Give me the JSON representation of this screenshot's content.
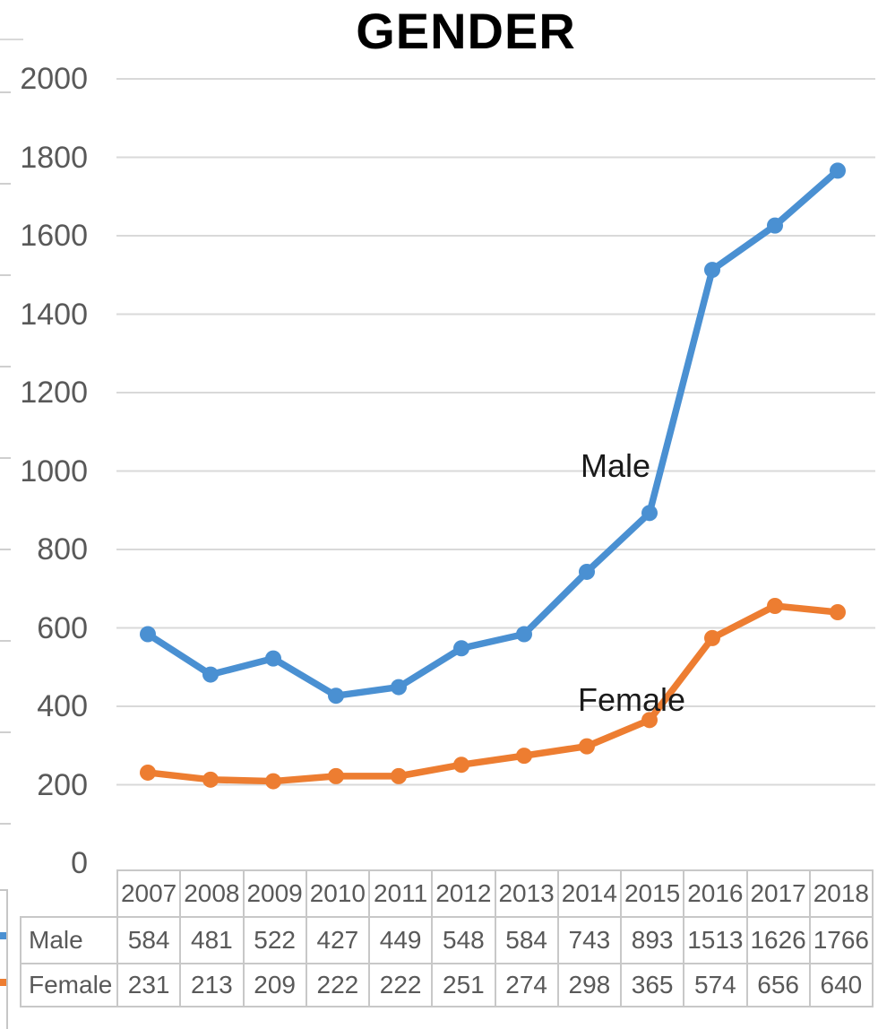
{
  "title": "GENDER",
  "colors": {
    "male": "#4a90d2",
    "female": "#ed7d31",
    "gridline": "#d9d9d9",
    "axis_text": "#595959",
    "table_border": "#c8c8c8",
    "table_text": "#595959",
    "inline_label_text": "#1a1a1a"
  },
  "chart_data": {
    "type": "line",
    "title": "GENDER",
    "x": [
      2007,
      2008,
      2009,
      2010,
      2011,
      2012,
      2013,
      2014,
      2015,
      2016,
      2017,
      2018
    ],
    "series": [
      {
        "name": "Male",
        "color": "#4a90d2",
        "values": [
          584,
          481,
          522,
          427,
          449,
          548,
          584,
          743,
          893,
          1513,
          1626,
          1766
        ]
      },
      {
        "name": "Female",
        "color": "#ed7d31",
        "values": [
          231,
          213,
          209,
          222,
          222,
          251,
          274,
          298,
          365,
          574,
          656,
          640
        ]
      }
    ],
    "ylim": [
      0,
      2000
    ],
    "ytick_step": 200,
    "grid": true,
    "legend_position": "inline-series-labels-and-data-table"
  },
  "y_axis": {
    "ticks": [
      "2000",
      "1800",
      "1600",
      "1400",
      "1200",
      "1000",
      "800",
      "600",
      "400",
      "200",
      "0"
    ]
  },
  "table": {
    "corner": "",
    "header": [
      "2007",
      "2008",
      "2009",
      "2010",
      "2011",
      "2012",
      "2013",
      "2014",
      "2015",
      "2016",
      "2017",
      "2018"
    ],
    "rows": [
      {
        "label": "Male",
        "values": [
          "584",
          "481",
          "522",
          "427",
          "449",
          "548",
          "584",
          "743",
          "893",
          "1513",
          "1626",
          "1766"
        ]
      },
      {
        "label": "Female",
        "values": [
          "231",
          "213",
          "209",
          "222",
          "222",
          "251",
          "274",
          "298",
          "365",
          "574",
          "656",
          "640"
        ]
      }
    ]
  }
}
